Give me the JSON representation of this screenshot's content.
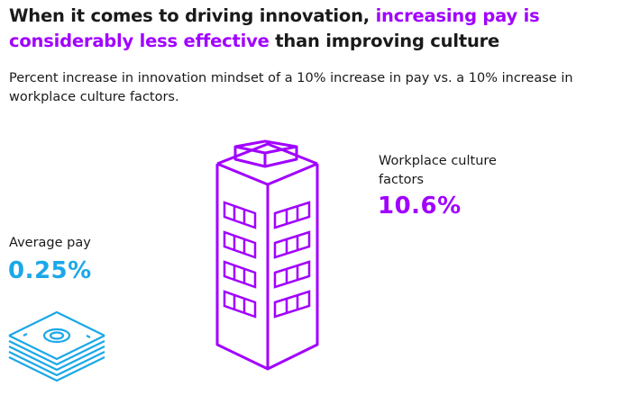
{
  "header": {
    "title_part1": "When it comes to driving innovation, ",
    "title_highlight": "increasing pay is considerably less effective",
    "title_part2": " than improving culture",
    "subtitle": "Percent increase in innovation mindset of a 10% increase in pay vs. a 10% increase in workplace culture factors."
  },
  "colors": {
    "highlight": "#a100ff",
    "pay": "#1aa8e8",
    "text": "#1a1a1a"
  },
  "icons": {
    "pay": "money-stack-icon",
    "culture": "building-icon"
  },
  "chart_data": {
    "type": "bar",
    "title": "When it comes to driving innovation, increasing pay is considerably less effective than improving culture",
    "subtitle": "Percent increase in innovation mindset of a 10% increase in pay vs. a 10% increase in workplace culture factors.",
    "categories": [
      "Average pay",
      "Workplace culture factors"
    ],
    "values": [
      0.25,
      10.6
    ],
    "value_labels": [
      "0.25%",
      "10.6%"
    ],
    "unit": "%"
  }
}
